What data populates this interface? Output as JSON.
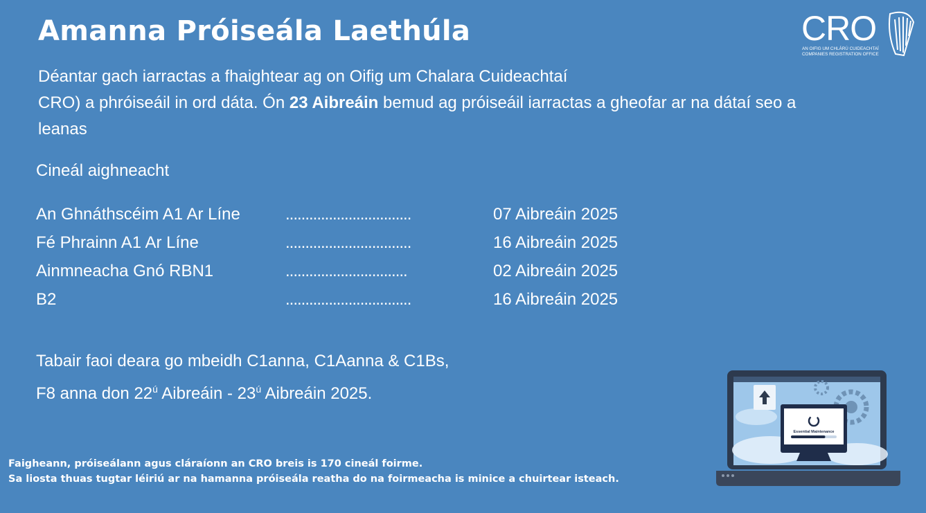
{
  "header": {
    "title": "Amanna Próiseála Laethúla"
  },
  "intro": {
    "part1": "Déantar gach iarractas a fhaightear ag on Oifig um Chalara Cuideachtaí",
    "part2": "CRO) a phróiseáil in ord dáta. Ón ",
    "bold_date": "23 Aibreáin",
    "part3": " bemud ag próiseáil iarractas a gheofar ar na dátaí seo a leanas"
  },
  "schedule": {
    "heading": "Cineál aighneacht",
    "rows": [
      {
        "label": "An Ghnáthscéim A1 Ar Líne",
        "dots": "................................",
        "date": "07 Aibreáin 2025"
      },
      {
        "label": "Fé Phrainn A1 Ar Líne",
        "dots": "................................",
        "date": "16 Aibreáin 2025"
      },
      {
        "label": "Ainmneacha Gnó RBN1",
        "dots": "...............................",
        "date": "02 Aibreáin 2025"
      },
      {
        "label": "B2",
        "dots": "................................",
        "date": "16 Aibreáin 2025"
      }
    ]
  },
  "note": {
    "line1": "Tabair faoi deara go mbeidh C1anna, C1Aanna & C1Bs,",
    "line2_a": "F8 anna don 22",
    "sup1": "ú",
    "line2_b": " Aibreáin - 23",
    "sup2": "ú",
    "line2_c": " Aibreáin 2025."
  },
  "footer": {
    "line1": "Faigheann, próiseálann agus cláraíonn an CRO breis is 170 cineál foirme.",
    "line2": "Sa liosta thuas tugtar léiriú ar na hamanna próiseála reatha do na foirmeacha is minice a chuirtear isteach."
  },
  "logo": {
    "text": "CRO",
    "subtitle1": "AN OIFIG UM CHLÁRÚ CUIDEACHTAÍ",
    "subtitle2": "COMPANIES REGISTRATION OFFICE",
    "icon": "harp-icon"
  },
  "illustration": {
    "icon": "laptop-icon",
    "screen_text": "Essential Maintenance",
    "progress": 0.75
  },
  "colors": {
    "background": "#4a86bf",
    "text": "#ffffff"
  }
}
